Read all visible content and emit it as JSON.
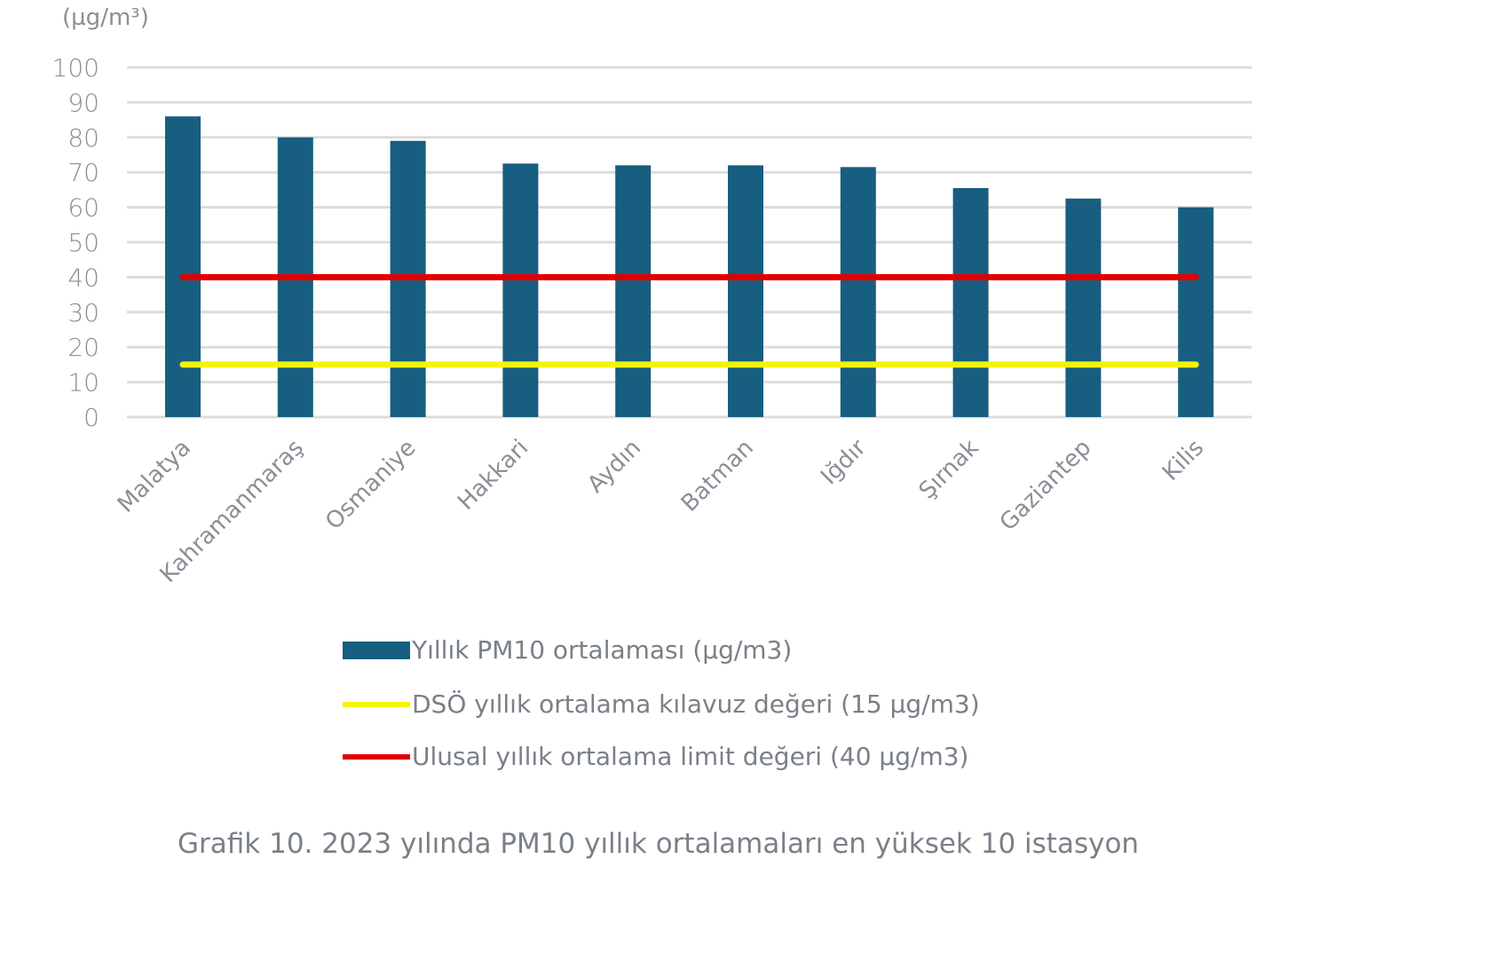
{
  "chart_data": {
    "type": "bar",
    "ylabel": "(µg/m³)",
    "ylim": [
      0,
      100
    ],
    "yticks": [
      0,
      10,
      20,
      30,
      40,
      50,
      60,
      70,
      80,
      90,
      100
    ],
    "grid": true,
    "legend_placement": "bottom",
    "categories": [
      "Malatya",
      "Kahramanmaraş",
      "Osmaniye",
      "Hakkari",
      "Aydın",
      "Batman",
      "Iğdır",
      "Şırnak",
      "Gaziantep",
      "Kilis"
    ],
    "series": [
      {
        "name": "Yıllık  PM10 ortalaması (µg/m3)",
        "type": "bar",
        "color": "#175e80",
        "values": [
          86,
          80,
          79,
          72.5,
          72,
          72,
          71.5,
          65.5,
          62.5,
          60
        ]
      },
      {
        "name": "DSÖ yıllık ortalama kılavuz değeri (15 µg/m3)",
        "type": "line",
        "color": "#f5f500",
        "values": [
          15,
          15,
          15,
          15,
          15,
          15,
          15,
          15,
          15,
          15
        ]
      },
      {
        "name": "Ulusal yıllık ortalama limit değeri (40 µg/m3)",
        "type": "line",
        "color": "#e00000",
        "values": [
          40,
          40,
          40,
          40,
          40,
          40,
          40,
          40,
          40,
          40
        ]
      }
    ],
    "caption": "Grafik 10. 2023 yılında PM10 yıllık ortalamaları en yüksek 10 istasyon"
  }
}
